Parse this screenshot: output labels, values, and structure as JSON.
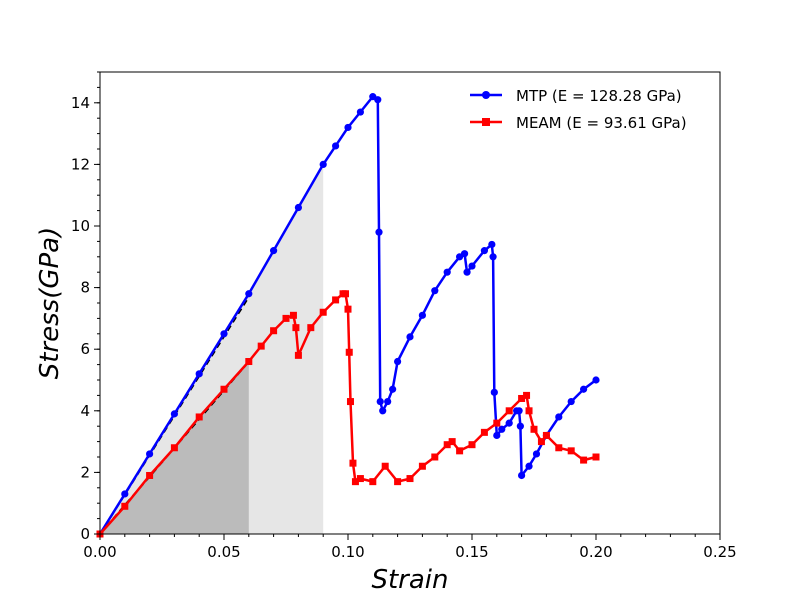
{
  "chart_data": {
    "type": "line",
    "xlabel": "Strain",
    "ylabel": "Stress(GPa)",
    "xlim": [
      0.0,
      0.25
    ],
    "ylim": [
      0,
      15
    ],
    "xticks": [
      "0.00",
      "0.05",
      "0.10",
      "0.15",
      "0.20",
      "0.25"
    ],
    "yticks": [
      "0",
      "2",
      "4",
      "6",
      "8",
      "10",
      "12",
      "14"
    ],
    "legend_position": "upper-right",
    "shaded_regions": [
      {
        "series": "MEAM",
        "x_end": 0.06,
        "color": "#bbbbbb"
      },
      {
        "series": "MTP",
        "x_end": 0.09,
        "color": "#e6e6e6"
      }
    ],
    "fit_lines": [
      {
        "series": "MTP",
        "x": [
          0.0,
          0.06
        ],
        "y": [
          0.0,
          7.7
        ],
        "style": "dashed"
      },
      {
        "series": "MEAM",
        "x": [
          0.0,
          0.06
        ],
        "y": [
          0.0,
          5.6
        ],
        "style": "dashed"
      }
    ],
    "series": [
      {
        "name": "MTP (E = 128.28 GPa)",
        "color": "#0000ff",
        "marker": "circle",
        "x": [
          0.0,
          0.01,
          0.02,
          0.03,
          0.04,
          0.05,
          0.06,
          0.07,
          0.08,
          0.09,
          0.095,
          0.1,
          0.105,
          0.11,
          0.112,
          0.1125,
          0.113,
          0.114,
          0.116,
          0.118,
          0.12,
          0.125,
          0.13,
          0.135,
          0.14,
          0.145,
          0.147,
          0.148,
          0.15,
          0.155,
          0.158,
          0.1585,
          0.159,
          0.16,
          0.162,
          0.165,
          0.168,
          0.169,
          0.1695,
          0.17,
          0.173,
          0.176,
          0.18,
          0.185,
          0.19,
          0.195,
          0.2
        ],
        "y": [
          0.0,
          1.3,
          2.6,
          3.9,
          5.2,
          6.5,
          7.8,
          9.2,
          10.6,
          12.0,
          12.6,
          13.2,
          13.7,
          14.2,
          14.1,
          9.8,
          4.3,
          4.0,
          4.3,
          4.7,
          5.6,
          6.4,
          7.1,
          7.9,
          8.5,
          9.0,
          9.1,
          8.5,
          8.7,
          9.2,
          9.4,
          9.0,
          4.6,
          3.2,
          3.4,
          3.6,
          4.0,
          4.0,
          3.5,
          1.9,
          2.2,
          2.6,
          3.2,
          3.8,
          4.3,
          4.7,
          5.0
        ]
      },
      {
        "name": "MEAM (E = 93.61 GPa)",
        "color": "#ff0000",
        "marker": "square",
        "x": [
          0.0,
          0.01,
          0.02,
          0.03,
          0.04,
          0.05,
          0.06,
          0.065,
          0.07,
          0.075,
          0.078,
          0.079,
          0.08,
          0.085,
          0.09,
          0.095,
          0.098,
          0.099,
          0.1,
          0.1005,
          0.101,
          0.102,
          0.103,
          0.105,
          0.11,
          0.115,
          0.12,
          0.125,
          0.13,
          0.135,
          0.14,
          0.142,
          0.145,
          0.15,
          0.155,
          0.16,
          0.165,
          0.17,
          0.172,
          0.173,
          0.175,
          0.178,
          0.18,
          0.185,
          0.19,
          0.195,
          0.2
        ],
        "y": [
          0.0,
          0.9,
          1.9,
          2.8,
          3.8,
          4.7,
          5.6,
          6.1,
          6.6,
          7.0,
          7.1,
          6.7,
          5.8,
          6.7,
          7.2,
          7.6,
          7.8,
          7.8,
          7.3,
          5.9,
          4.3,
          2.3,
          1.7,
          1.8,
          1.7,
          2.2,
          1.7,
          1.8,
          2.2,
          2.5,
          2.9,
          3.0,
          2.7,
          2.9,
          3.3,
          3.6,
          4.0,
          4.4,
          4.5,
          4.0,
          3.4,
          3.0,
          3.2,
          2.8,
          2.7,
          2.4,
          2.5
        ]
      }
    ]
  }
}
